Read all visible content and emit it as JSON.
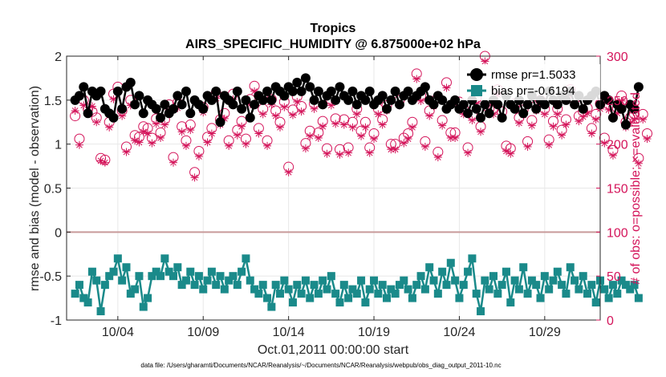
{
  "chart_data": {
    "type": "line",
    "title": "Tropics",
    "subtitle": "AIRS_SPECIFIC_HUMIDITY @ 6.875000e+02 hPa",
    "xlabel": "Oct.01,2011 00:00:00 start",
    "ylabel_left": "rmse and bias (model - observation)",
    "ylabel_right": "# of obs: o=possible; ×=evaluated",
    "footnote": "data file: /Users/gharamti/Documents/NCAR/Reanalysis/~/Documents/NCAR/Reanalysis/webpub/obs_diag_output_2011-10.nc",
    "xlim": [
      1,
      32.25
    ],
    "ylim_left": [
      -1,
      2
    ],
    "ylim_right": [
      0,
      300
    ],
    "xticks": [
      4,
      9,
      14,
      19,
      24,
      29
    ],
    "xtick_labels": [
      "10/04",
      "10/09",
      "10/14",
      "10/19",
      "10/24",
      "10/29"
    ],
    "yticks_left": [
      -1,
      -0.5,
      0,
      0.5,
      1,
      1.5,
      2
    ],
    "ytick_labels_left": [
      "-1",
      "-0.5",
      "0",
      "0.5",
      "1",
      "1.5",
      "2"
    ],
    "yticks_right": [
      0,
      50,
      100,
      150,
      200,
      250,
      300
    ],
    "ytick_labels_right": [
      "0",
      "50",
      "100",
      "150",
      "200",
      "250",
      "300"
    ],
    "zero_line": 0,
    "grid": true,
    "legend": {
      "position": "top-right",
      "entries": [
        "rmse pr=1.5033",
        "bias pr=-0.6194"
      ]
    },
    "colors": {
      "rmse": "#000000",
      "bias": "#1a8a8a",
      "obs": "#d4145a",
      "zero_line": "#c89a9a",
      "grid": "#e8e8e8"
    },
    "series": [
      {
        "name": "rmse pr=1.5033",
        "marker": "filled-circle",
        "values": [
          1.5,
          1.55,
          1.65,
          1.35,
          1.6,
          1.55,
          1.6,
          1.4,
          1.35,
          1.3,
          1.6,
          1.4,
          1.65,
          1.7,
          1.45,
          1.55,
          1.35,
          1.5,
          1.45,
          1.4,
          1.3,
          1.45,
          1.35,
          1.4,
          1.55,
          1.45,
          1.6,
          1.35,
          1.5,
          1.45,
          1.4,
          1.55,
          1.5,
          1.6,
          1.25,
          1.55,
          1.5,
          1.45,
          1.6,
          1.4,
          1.5,
          1.3,
          1.45,
          1.55,
          1.5,
          1.6,
          1.5,
          1.65,
          1.6,
          1.55,
          1.65,
          1.6,
          1.7,
          1.6,
          1.75,
          1.65,
          1.5,
          1.6,
          1.45,
          1.55,
          1.6,
          1.5,
          1.65,
          1.55,
          1.5,
          1.6,
          1.45,
          1.55,
          1.5,
          1.6,
          1.45,
          1.5,
          1.55,
          1.4,
          1.5,
          1.6,
          1.45,
          1.55,
          1.6,
          1.5,
          1.55,
          1.6,
          1.65,
          1.5,
          1.45,
          1.55,
          1.5,
          1.4,
          1.45,
          1.5,
          1.4,
          1.45,
          1.35,
          1.5,
          1.4,
          1.3,
          1.45,
          1.35,
          1.5,
          1.45,
          1.3,
          1.55,
          1.45,
          1.4,
          1.5,
          1.35,
          1.45,
          1.55,
          1.4,
          1.5,
          1.45,
          1.6,
          1.5,
          1.45,
          1.55,
          1.5,
          1.6,
          1.45,
          1.55,
          1.4,
          1.5,
          1.55,
          1.6,
          1.45,
          1.55,
          1.5,
          1.3,
          1.45,
          1.4,
          1.22,
          1.45,
          1.4,
          1.65
        ]
      },
      {
        "name": "bias pr=-0.6194",
        "marker": "filled-square",
        "values": [
          -0.7,
          -0.6,
          -0.75,
          -0.8,
          -0.45,
          -0.55,
          -0.9,
          -0.6,
          -0.5,
          -0.45,
          -0.3,
          -0.55,
          -0.4,
          -0.7,
          -0.65,
          -0.5,
          -0.85,
          -0.75,
          -0.5,
          -0.45,
          -0.5,
          -0.3,
          -0.45,
          -0.5,
          -0.4,
          -0.6,
          -0.55,
          -0.45,
          -0.6,
          -0.5,
          -0.65,
          -0.55,
          -0.45,
          -0.6,
          -0.5,
          -0.65,
          -0.55,
          -0.5,
          -0.6,
          -0.45,
          -0.3,
          -0.55,
          -0.65,
          -0.7,
          -0.6,
          -0.75,
          -0.85,
          -0.6,
          -0.7,
          -0.55,
          -0.65,
          -0.8,
          -0.6,
          -0.7,
          -0.55,
          -0.75,
          -0.6,
          -0.7,
          -0.55,
          -0.65,
          -0.5,
          -0.7,
          -0.8,
          -0.6,
          -0.75,
          -0.65,
          -0.7,
          -0.55,
          -0.8,
          -0.65,
          -0.55,
          -0.7,
          -0.6,
          -0.75,
          -0.65,
          -0.7,
          -0.6,
          -0.55,
          -0.65,
          -0.75,
          -0.6,
          -0.5,
          -0.65,
          -0.4,
          -0.55,
          -0.7,
          -0.45,
          -0.6,
          -0.35,
          -0.55,
          -0.75,
          -0.6,
          -0.45,
          -0.3,
          -0.7,
          -0.9,
          -0.55,
          -0.65,
          -0.5,
          -0.7,
          -0.6,
          -0.45,
          -0.8,
          -0.55,
          -0.65,
          -0.4,
          -0.7,
          -0.55,
          -0.6,
          -0.75,
          -0.5,
          -0.65,
          -0.55,
          -0.45,
          -0.6,
          -0.7,
          -0.4,
          -0.55,
          -0.65,
          -0.5,
          -0.7,
          -0.6,
          -0.8,
          -0.55,
          -0.65,
          -0.75,
          -0.6,
          -0.7,
          -0.55,
          -0.6,
          -0.65,
          -0.6,
          -0.75
        ]
      },
      {
        "name": "possible",
        "axis": "right",
        "marker": "open-circle",
        "values": [
          232,
          206,
          250,
          240,
          237,
          230,
          184,
          182,
          225,
          257,
          265,
          238,
          197,
          250,
          210,
          208,
          220,
          218,
          207,
          229,
          213,
          228,
          245,
          185,
          247,
          220,
          204,
          222,
          168,
          192,
          242,
          208,
          218,
          258,
          228,
          235,
          204,
          257,
          216,
          226,
          206,
          251,
          266,
          218,
          240,
          204,
          251,
          238,
          225,
          248,
          174,
          239,
          254,
          243,
          201,
          215,
          246,
          213,
          226,
          195,
          250,
          229,
          194,
          228,
          196,
          225,
          240,
          215,
          225,
          196,
          212,
          240,
          228,
          244,
          200,
          200,
          250,
          207,
          212,
          225,
          280,
          255,
          203,
          238,
          249,
          191,
          227,
          270,
          213,
          213,
          248,
          240,
          196,
          233,
          252,
          220,
          300,
          240,
          240,
          262,
          237,
          198,
          195,
          246,
          230,
          239,
          203,
          227,
          244,
          250,
          240,
          205,
          226,
          240,
          216,
          228,
          262,
          251,
          232,
          237,
          241,
          218,
          234,
          246,
          207,
          245,
          193,
          241,
          255,
          225,
          230,
          234,
          184,
          234,
          212
        ]
      },
      {
        "name": "evaluated",
        "axis": "right",
        "marker": "cross",
        "values": [
          238,
          199,
          244,
          235,
          243,
          225,
          181,
          179,
          219,
          251,
          259,
          232,
          191,
          244,
          204,
          202,
          214,
          212,
          201,
          223,
          207,
          222,
          239,
          179,
          241,
          214,
          198,
          216,
          162,
          186,
          236,
          202,
          212,
          252,
          222,
          229,
          198,
          251,
          210,
          220,
          200,
          245,
          260,
          212,
          234,
          198,
          245,
          232,
          219,
          242,
          168,
          233,
          248,
          237,
          195,
          209,
          240,
          207,
          220,
          189,
          244,
          223,
          188,
          222,
          190,
          219,
          234,
          209,
          219,
          190,
          206,
          234,
          222,
          238,
          194,
          194,
          244,
          201,
          206,
          219,
          274,
          249,
          197,
          232,
          243,
          185,
          221,
          264,
          207,
          207,
          242,
          234,
          190,
          227,
          246,
          214,
          294,
          234,
          234,
          256,
          231,
          192,
          189,
          240,
          224,
          233,
          197,
          221,
          238,
          244,
          234,
          199,
          220,
          234,
          210,
          222,
          256,
          245,
          226,
          231,
          235,
          212,
          228,
          240,
          201,
          239,
          187,
          235,
          249,
          219,
          224,
          228,
          178,
          228,
          206
        ]
      }
    ]
  }
}
